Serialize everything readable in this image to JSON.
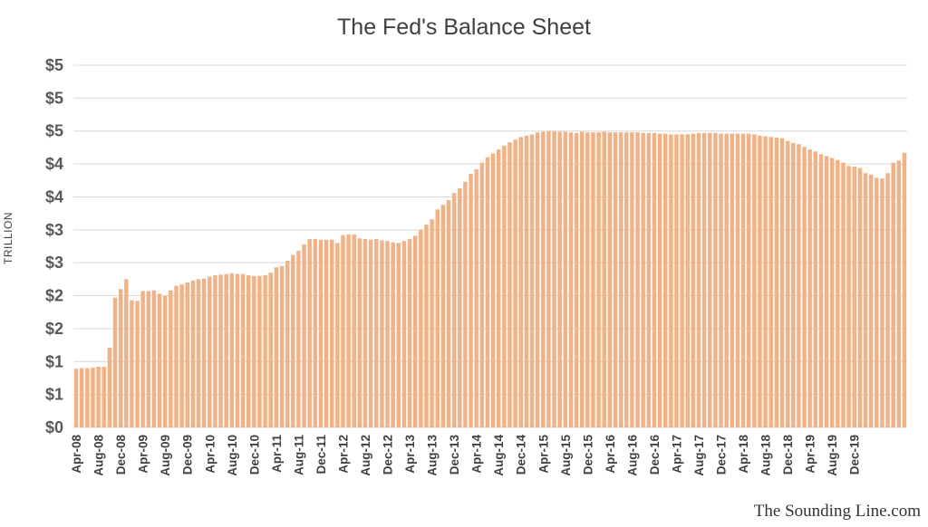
{
  "chart_data": {
    "type": "bar",
    "title": "The Fed's Balance Sheet",
    "ylabel": "TRILLION",
    "watermark": "The Sounding Line.com",
    "bar_color": "#F4B183",
    "grid_color": "#D9D9D9",
    "grid": true,
    "legend": "none",
    "ylim": [
      0,
      5.5
    ],
    "y_ticks": [
      0,
      0.5,
      1,
      1.5,
      2,
      2.5,
      3,
      3.5,
      4,
      4.5,
      5,
      5.5
    ],
    "y_tick_labels": [
      "$0",
      "$1",
      "$1",
      "$2",
      "$2",
      "$3",
      "$3",
      "$4",
      "$4",
      "$5",
      "$5",
      "$5"
    ],
    "x_tick_labels": [
      "Apr-08",
      "Aug-08",
      "Dec-08",
      "Apr-09",
      "Aug-09",
      "Dec-09",
      "Apr-10",
      "Aug-10",
      "Dec-10",
      "Apr-11",
      "Aug-11",
      "Dec-11",
      "Apr-12",
      "Aug-12",
      "Dec-12",
      "Apr-13",
      "Aug-13",
      "Dec-13",
      "Apr-14",
      "Aug-14",
      "Dec-14",
      "Apr-15",
      "Aug-15",
      "Dec-15",
      "Apr-16",
      "Aug-16",
      "Dec-16",
      "Apr-17",
      "Aug-17",
      "Dec-17",
      "Apr-18",
      "Aug-18",
      "Dec-18",
      "Apr-19",
      "Aug-19",
      "Dec-19"
    ],
    "x_tick_every": 4,
    "values": [
      0.89,
      0.9,
      0.9,
      0.91,
      0.92,
      0.92,
      1.21,
      1.97,
      2.1,
      2.25,
      1.93,
      1.92,
      2.07,
      2.07,
      2.08,
      2.03,
      2.0,
      2.08,
      2.15,
      2.17,
      2.2,
      2.23,
      2.25,
      2.26,
      2.29,
      2.31,
      2.32,
      2.33,
      2.34,
      2.33,
      2.33,
      2.31,
      2.3,
      2.3,
      2.31,
      2.35,
      2.43,
      2.45,
      2.53,
      2.62,
      2.68,
      2.78,
      2.86,
      2.86,
      2.85,
      2.85,
      2.85,
      2.8,
      2.92,
      2.93,
      2.93,
      2.87,
      2.86,
      2.85,
      2.86,
      2.84,
      2.83,
      2.81,
      2.8,
      2.83,
      2.86,
      2.91,
      3.0,
      3.08,
      3.16,
      3.31,
      3.38,
      3.45,
      3.56,
      3.63,
      3.73,
      3.85,
      3.92,
      4.02,
      4.1,
      4.16,
      4.22,
      4.28,
      4.33,
      4.37,
      4.41,
      4.43,
      4.45,
      4.48,
      4.49,
      4.5,
      4.5,
      4.49,
      4.49,
      4.48,
      4.47,
      4.49,
      4.48,
      4.48,
      4.48,
      4.49,
      4.48,
      4.48,
      4.48,
      4.48,
      4.48,
      4.48,
      4.47,
      4.47,
      4.47,
      4.46,
      4.46,
      4.45,
      4.45,
      4.45,
      4.45,
      4.46,
      4.47,
      4.47,
      4.47,
      4.47,
      4.46,
      4.46,
      4.46,
      4.46,
      4.46,
      4.46,
      4.45,
      4.43,
      4.42,
      4.41,
      4.4,
      4.39,
      4.35,
      4.32,
      4.3,
      4.26,
      4.22,
      4.19,
      4.15,
      4.12,
      4.09,
      4.06,
      4.02,
      3.97,
      3.96,
      3.94,
      3.86,
      3.84,
      3.79,
      3.78,
      3.86,
      4.02,
      4.05,
      4.17
    ]
  }
}
